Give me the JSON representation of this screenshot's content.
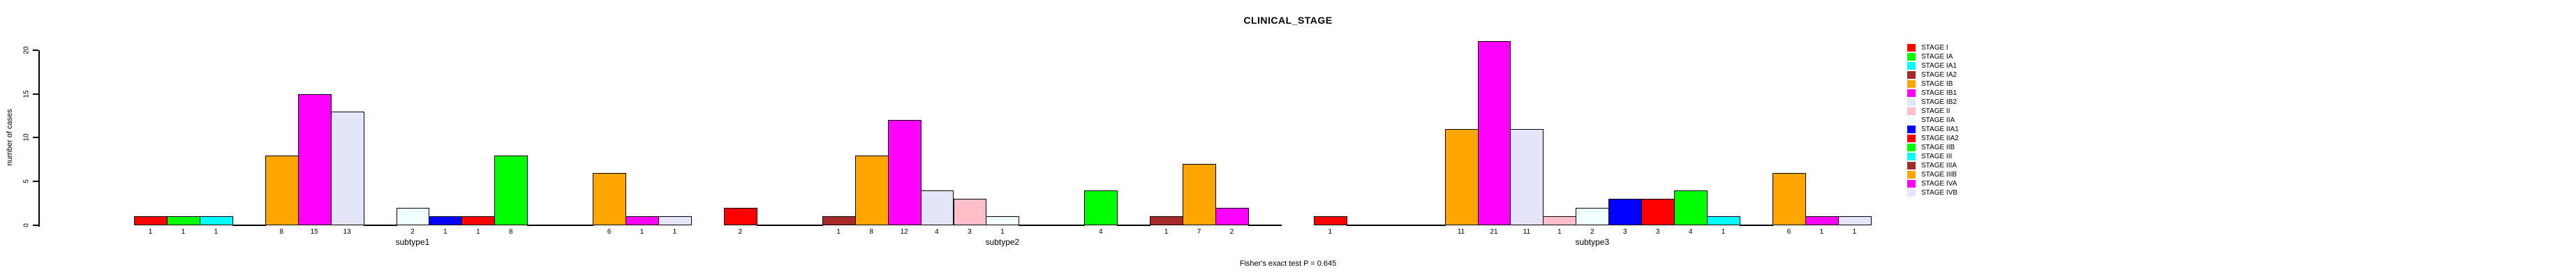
{
  "chart_data": {
    "type": "bar",
    "title": "CLINICAL_STAGE",
    "ylabel": "number of cases",
    "ylim": [
      0,
      20
    ],
    "y_ticks": [
      0,
      5,
      10,
      15,
      20
    ],
    "grid": false,
    "legend_position": "right",
    "annotation": "Fisher's exact test P = 0.645",
    "stages": [
      {
        "label": "STAGE I",
        "color": "#FF0000"
      },
      {
        "label": "STAGE IA",
        "color": "#00FF00"
      },
      {
        "label": "STAGE IA1",
        "color": "#00FFFF"
      },
      {
        "label": "STAGE IA2",
        "color": "#A52A2A"
      },
      {
        "label": "STAGE IB",
        "color": "#FFA500"
      },
      {
        "label": "STAGE IB1",
        "color": "#FF00FF"
      },
      {
        "label": "STAGE IB2",
        "color": "#E6E6FA"
      },
      {
        "label": "STAGE II",
        "color": "#FFC0CB"
      },
      {
        "label": "STAGE IIA",
        "color": "#F0FFFF"
      },
      {
        "label": "STAGE IIA1",
        "color": "#0000FF"
      },
      {
        "label": "STAGE IIA2",
        "color": "#FF0000"
      },
      {
        "label": "STAGE IIB",
        "color": "#00FF00"
      },
      {
        "label": "STAGE III",
        "color": "#00FFFF"
      },
      {
        "label": "STAGE IIIA",
        "color": "#A52A2A"
      },
      {
        "label": "STAGE IIIB",
        "color": "#FFA500"
      },
      {
        "label": "STAGE IVA",
        "color": "#FF00FF"
      },
      {
        "label": "STAGE IVB",
        "color": "#E6E6FA"
      }
    ],
    "groups": [
      {
        "label": "subtype1",
        "values": [
          1,
          1,
          1,
          0,
          8,
          15,
          13,
          0,
          2,
          1,
          1,
          8,
          0,
          0,
          6,
          1,
          1
        ]
      },
      {
        "label": "subtype2",
        "values": [
          2,
          0,
          0,
          1,
          8,
          12,
          4,
          3,
          1,
          0,
          0,
          4,
          0,
          1,
          7,
          2,
          0
        ]
      },
      {
        "label": "subtype3",
        "values": [
          1,
          0,
          0,
          0,
          11,
          21,
          11,
          1,
          2,
          3,
          3,
          4,
          1,
          0,
          6,
          1,
          1
        ]
      }
    ]
  }
}
